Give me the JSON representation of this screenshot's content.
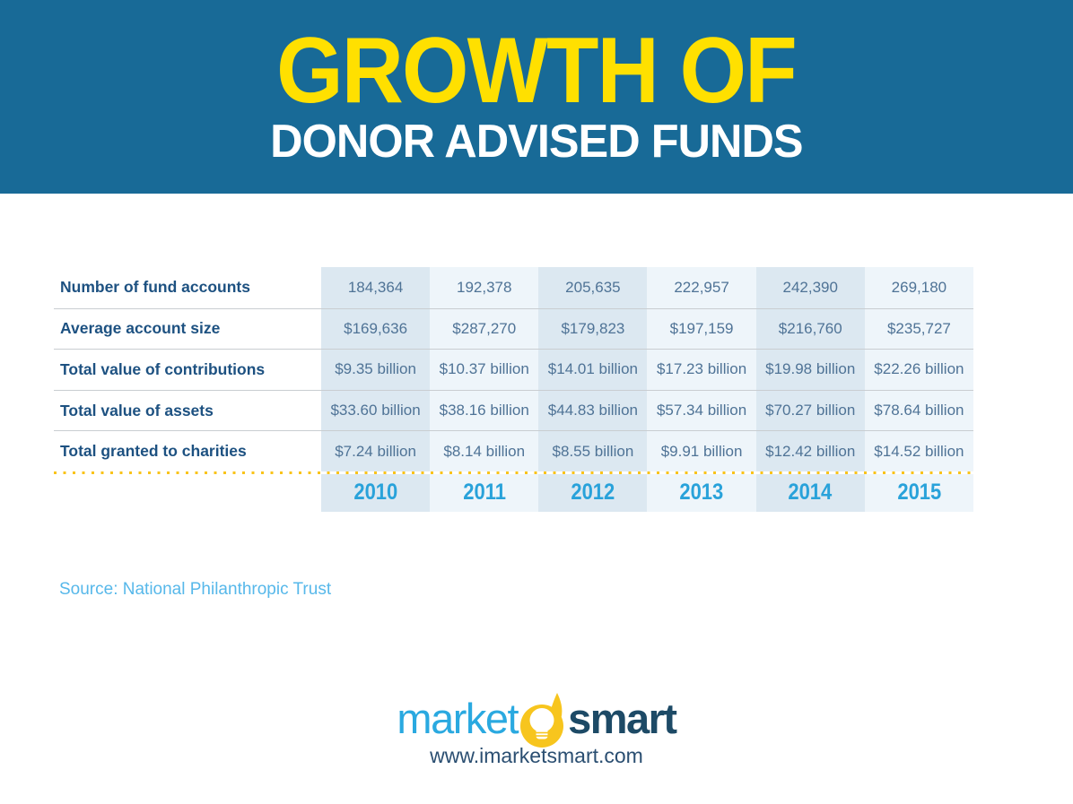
{
  "header": {
    "title_line1": "GROWTH OF",
    "title_line2": "DONOR ADVISED FUNDS",
    "background_color": "#186a97",
    "title1_color": "#ffe000",
    "title2_color": "#ffffff"
  },
  "table": {
    "years": [
      "2010",
      "2011",
      "2012",
      "2013",
      "2014",
      "2015"
    ],
    "rows": [
      {
        "label": "Number of fund accounts",
        "values": [
          "184,364",
          "192,378",
          "205,635",
          "222,957",
          "242,390",
          "269,180"
        ]
      },
      {
        "label": "Average account size",
        "values": [
          "$169,636",
          "$287,270",
          "$179,823",
          "$197,159",
          "$216,760",
          "$235,727"
        ]
      },
      {
        "label": "Total value of contributions",
        "values": [
          "$9.35 billion",
          "$10.37 billion",
          "$14.01 billion",
          "$17.23 billion",
          "$19.98 billion",
          "$22.26 billion"
        ]
      },
      {
        "label": "Total value of assets",
        "values": [
          "$33.60 billion",
          "$38.16 billion",
          "$44.83 billion",
          "$57.34 billion",
          "$70.27 billion",
          "$78.64 billion"
        ]
      },
      {
        "label": "Total granted to charities",
        "values": [
          "$7.24 billion",
          "$8.14 billion",
          "$8.55 billion",
          "$9.91 billion",
          "$12.42 billion",
          "$14.52 billion"
        ]
      }
    ],
    "colors": {
      "label_text": "#1d5181",
      "value_text": "#4f7396",
      "year_text": "#29a2da",
      "column_shade_dark": "#dce8f1",
      "column_shade_light": "#eef5fa",
      "row_divider": "#c9cdd1",
      "dotted_line": "#f9c31a"
    }
  },
  "source": {
    "label": "Source: National Philanthropic Trust",
    "color": "#57b8ea"
  },
  "footer": {
    "logo": {
      "market_text": "market",
      "smart_text": "smart",
      "bulb_icon": "lightbulb-icon",
      "market_color": "#2aa9e0",
      "smart_color": "#1d4a66",
      "bulb_color": "#f7c51e"
    },
    "website": "www.imarketsmart.com"
  },
  "chart_data": {
    "type": "table",
    "title": "Growth of Donor Advised Funds",
    "columns": [
      "2010",
      "2011",
      "2012",
      "2013",
      "2014",
      "2015"
    ],
    "rows": [
      {
        "label": "Number of fund accounts",
        "unit": "accounts",
        "values": [
          184364,
          192378,
          205635,
          222957,
          242390,
          269180
        ]
      },
      {
        "label": "Average account size",
        "unit": "USD",
        "values": [
          169636,
          287270,
          179823,
          197159,
          216760,
          235727
        ]
      },
      {
        "label": "Total value of contributions",
        "unit": "USD billions",
        "values": [
          9.35,
          10.37,
          14.01,
          17.23,
          19.98,
          22.26
        ]
      },
      {
        "label": "Total value of assets",
        "unit": "USD billions",
        "values": [
          33.6,
          38.16,
          44.83,
          57.34,
          70.27,
          78.64
        ]
      },
      {
        "label": "Total granted to charities",
        "unit": "USD billions",
        "values": [
          7.24,
          8.14,
          8.55,
          9.91,
          12.42,
          14.52
        ]
      }
    ],
    "source": "National Philanthropic Trust"
  }
}
